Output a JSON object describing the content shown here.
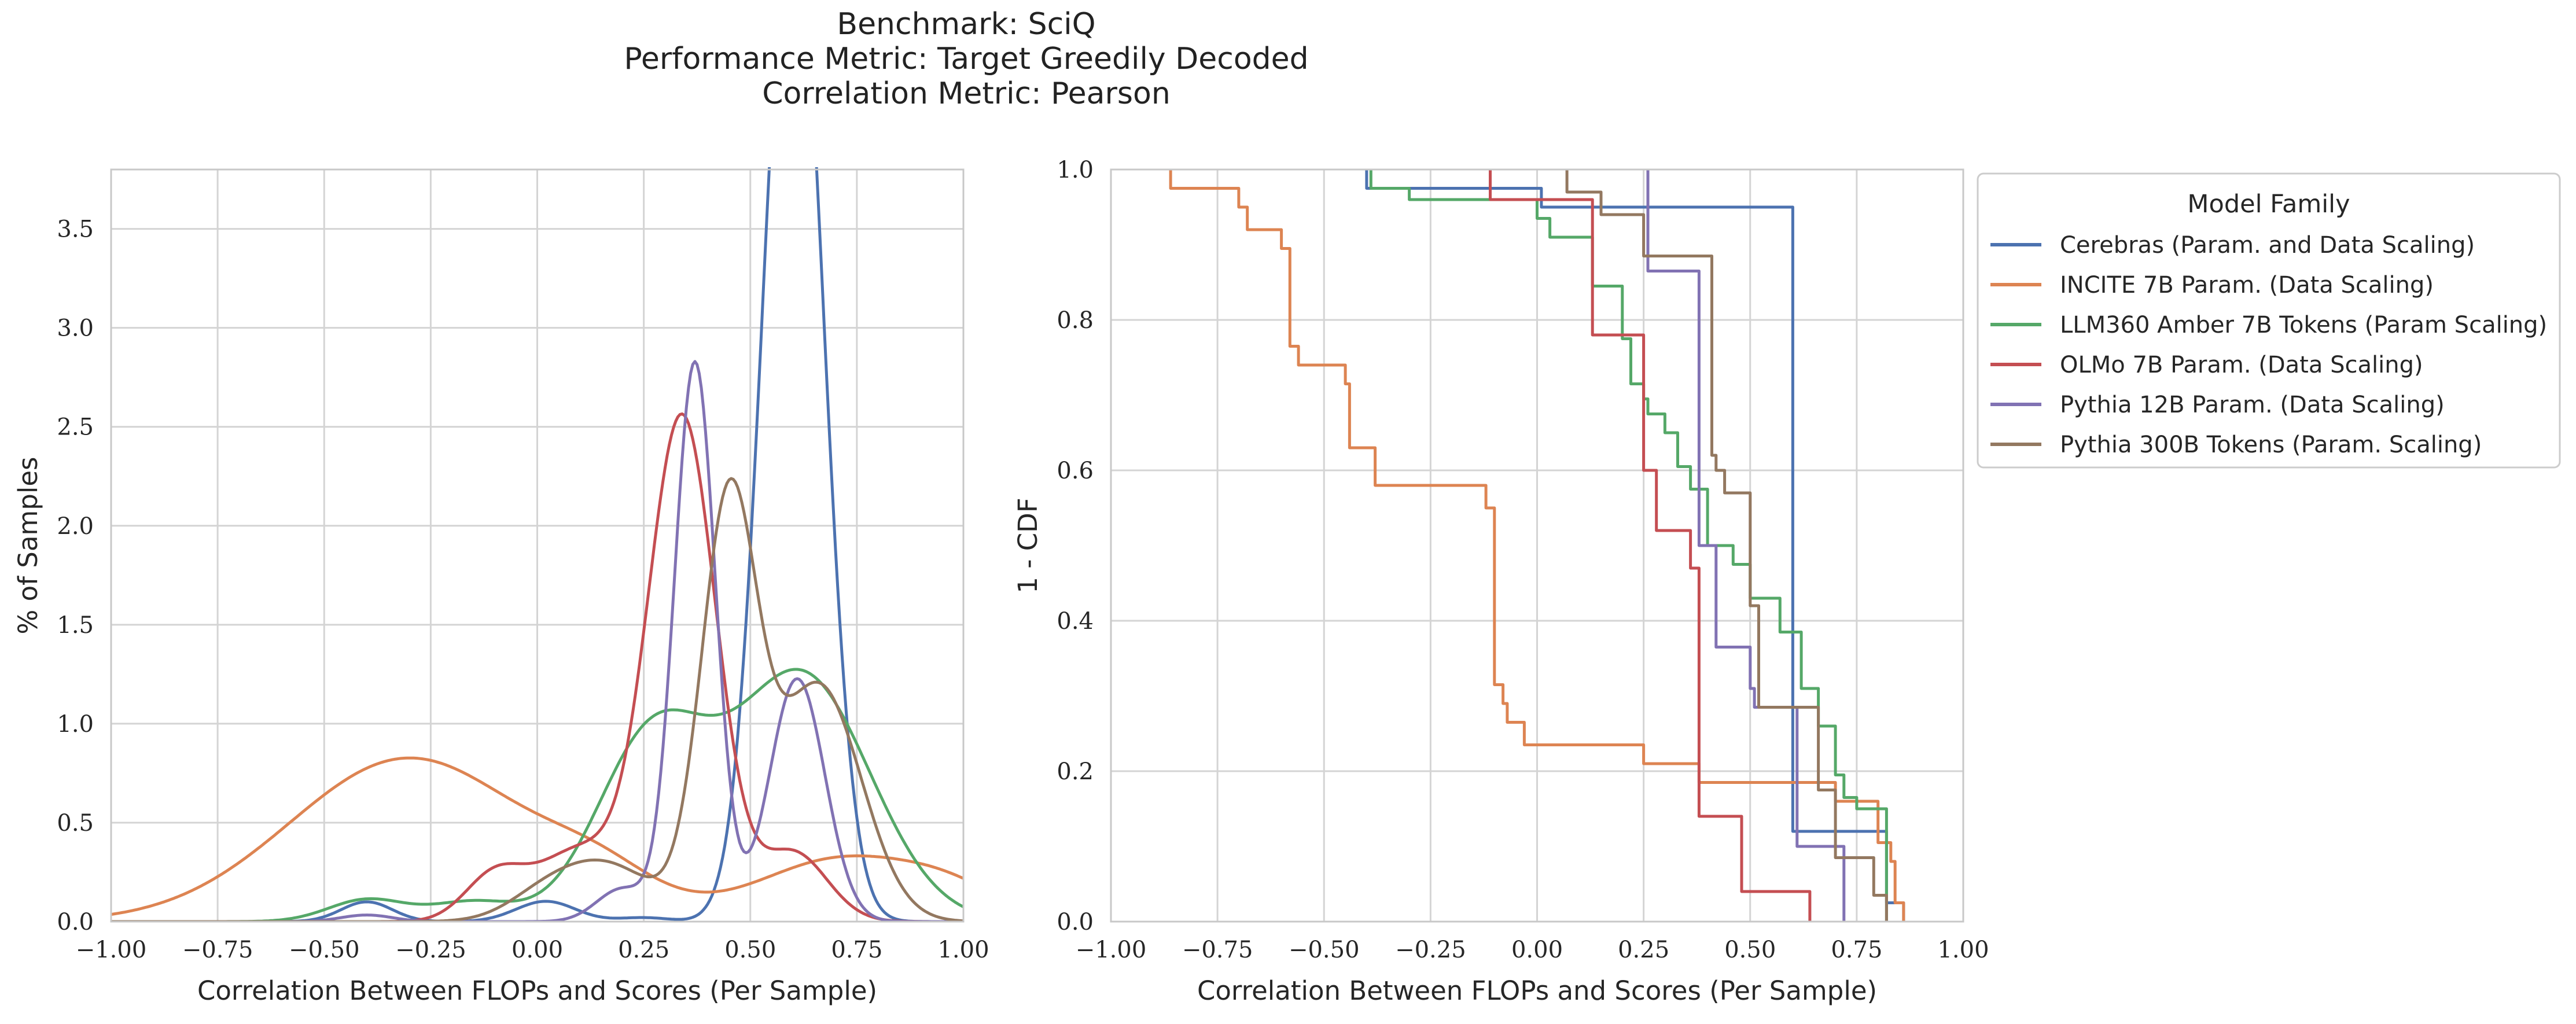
{
  "figure": {
    "title_lines": [
      "Benchmark: SciQ",
      "Performance Metric: Target Greedily Decoded",
      "Correlation Metric: Pearson"
    ]
  },
  "legend": {
    "title": "Model Family",
    "entries": [
      {
        "name": "Cerebras (Param. and Data Scaling)",
        "color": "#4c72b0"
      },
      {
        "name": "INCITE 7B Param. (Data Scaling)",
        "color": "#dd8452"
      },
      {
        "name": "LLM360 Amber 7B Tokens (Param Scaling)",
        "color": "#55a868"
      },
      {
        "name": "OLMo 7B Param. (Data Scaling)",
        "color": "#c44e52"
      },
      {
        "name": "Pythia 12B Param. (Data Scaling)",
        "color": "#8172b3"
      },
      {
        "name": "Pythia 300B Tokens (Param. Scaling)",
        "color": "#937860"
      }
    ]
  },
  "chart_data": [
    {
      "type": "line",
      "subtype": "kde",
      "xlabel": "Correlation Between FLOPs and Scores (Per Sample)",
      "ylabel": "% of Samples",
      "xlim": [
        -1.0,
        1.0
      ],
      "ylim": [
        0,
        3.8
      ],
      "xticks": [
        -1.0,
        -0.75,
        -0.5,
        -0.25,
        0.0,
        0.25,
        0.5,
        0.75,
        1.0
      ],
      "xtick_labels": [
        "−1.00",
        "−0.75",
        "−0.50",
        "−0.25",
        "0.00",
        "0.25",
        "0.50",
        "0.75",
        "1.00"
      ],
      "yticks": [
        0.0,
        0.5,
        1.0,
        1.5,
        2.0,
        2.5,
        3.0,
        3.5
      ],
      "ytick_labels": [
        "0.0",
        "0.5",
        "1.0",
        "1.5",
        "2.0",
        "2.5",
        "3.0",
        "3.5"
      ],
      "grid": true,
      "series": [
        {
          "name": "Cerebras (Param. and Data Scaling)",
          "color": "#4c72b0",
          "components": [
            [
              0.6,
              0.07,
              0.915
            ],
            [
              -0.4,
              0.06,
              0.015
            ],
            [
              0.02,
              0.07,
              0.018
            ],
            [
              0.25,
              0.06,
              0.003
            ]
          ]
        },
        {
          "name": "INCITE 7B Param. (Data Scaling)",
          "color": "#dd8452",
          "components": [
            [
              -0.3,
              0.28,
              0.58
            ],
            [
              0.15,
              0.13,
              0.05
            ],
            [
              0.72,
              0.2,
              0.16
            ],
            [
              0.98,
              0.12,
              0.03
            ]
          ]
        },
        {
          "name": "LLM360 Amber 7B Tokens (Param Scaling)",
          "color": "#55a868",
          "components": [
            [
              -0.4,
              0.09,
              0.025
            ],
            [
              -0.15,
              0.1,
              0.025
            ],
            [
              0.27,
              0.13,
              0.3
            ],
            [
              0.62,
              0.16,
              0.5
            ]
          ]
        },
        {
          "name": "OLMo 7B Param. (Data Scaling)",
          "color": "#c44e52",
          "components": [
            [
              0.34,
              0.08,
              0.51
            ],
            [
              0.1,
              0.1,
              0.09
            ],
            [
              -0.1,
              0.07,
              0.04
            ],
            [
              0.6,
              0.08,
              0.07
            ]
          ]
        },
        {
          "name": "Pythia 12B Param. (Data Scaling)",
          "color": "#8172b3",
          "components": [
            [
              0.37,
              0.048,
              0.34
            ],
            [
              0.61,
              0.065,
              0.2
            ],
            [
              0.2,
              0.06,
              0.025
            ],
            [
              -0.4,
              0.06,
              0.005
            ]
          ]
        },
        {
          "name": "Pythia 300B Tokens (Param. Scaling)",
          "color": "#937860",
          "components": [
            [
              0.45,
              0.065,
              0.34
            ],
            [
              0.66,
              0.1,
              0.3
            ],
            [
              0.15,
              0.12,
              0.09
            ],
            [
              0.0,
              0.08,
              0.012
            ]
          ]
        }
      ]
    },
    {
      "type": "line",
      "subtype": "step",
      "xlabel": "Correlation Between FLOPs and Scores (Per Sample)",
      "ylabel": "1 - CDF",
      "xlim": [
        -1.0,
        1.0
      ],
      "ylim": [
        0.0,
        1.0
      ],
      "xticks": [
        -1.0,
        -0.75,
        -0.5,
        -0.25,
        0.0,
        0.25,
        0.5,
        0.75,
        1.0
      ],
      "xtick_labels": [
        "−1.00",
        "−0.75",
        "−0.50",
        "−0.25",
        "0.00",
        "0.25",
        "0.50",
        "0.75",
        "1.00"
      ],
      "yticks": [
        0.0,
        0.2,
        0.4,
        0.6,
        0.8,
        1.0
      ],
      "ytick_labels": [
        "0.0",
        "0.2",
        "0.4",
        "0.6",
        "0.8",
        "1.0"
      ],
      "grid": true,
      "series": [
        {
          "name": "Cerebras (Param. and Data Scaling)",
          "color": "#4c72b0",
          "x": [
            -0.4,
            -0.4,
            0.01,
            0.01,
            0.6,
            0.6,
            0.82,
            0.82,
            0.86,
            0.86
          ],
          "y": [
            1.0,
            0.975,
            0.975,
            0.95,
            0.95,
            0.12,
            0.12,
            0.025,
            0.025,
            0.0
          ]
        },
        {
          "name": "INCITE 7B Param. (Data Scaling)",
          "color": "#dd8452",
          "x": [
            -0.86,
            -0.86,
            -0.7,
            -0.7,
            -0.68,
            -0.68,
            -0.6,
            -0.6,
            -0.58,
            -0.58,
            -0.56,
            -0.56,
            -0.45,
            -0.45,
            -0.44,
            -0.44,
            -0.38,
            -0.38,
            -0.12,
            -0.12,
            -0.1,
            -0.1,
            -0.08,
            -0.08,
            -0.07,
            -0.07,
            -0.03,
            -0.03,
            0.25,
            0.25,
            0.38,
            0.38,
            0.7,
            0.7,
            0.8,
            0.8,
            0.83,
            0.83,
            0.84,
            0.84,
            0.86,
            0.86
          ],
          "y": [
            1.0,
            0.975,
            0.975,
            0.95,
            0.95,
            0.92,
            0.92,
            0.895,
            0.895,
            0.765,
            0.765,
            0.74,
            0.74,
            0.715,
            0.715,
            0.63,
            0.63,
            0.58,
            0.58,
            0.55,
            0.55,
            0.315,
            0.315,
            0.29,
            0.29,
            0.265,
            0.265,
            0.235,
            0.235,
            0.21,
            0.21,
            0.185,
            0.185,
            0.16,
            0.16,
            0.105,
            0.105,
            0.08,
            0.08,
            0.025,
            0.025,
            0.0
          ]
        },
        {
          "name": "LLM360 Amber 7B Tokens (Param Scaling)",
          "color": "#55a868",
          "x": [
            -0.39,
            -0.39,
            -0.3,
            -0.3,
            0.0,
            0.0,
            0.03,
            0.03,
            0.13,
            0.13,
            0.2,
            0.2,
            0.22,
            0.22,
            0.25,
            0.25,
            0.26,
            0.26,
            0.3,
            0.3,
            0.33,
            0.33,
            0.36,
            0.36,
            0.4,
            0.4,
            0.46,
            0.46,
            0.5,
            0.5,
            0.57,
            0.57,
            0.62,
            0.62,
            0.66,
            0.66,
            0.7,
            0.7,
            0.72,
            0.72,
            0.75,
            0.75,
            0.82,
            0.82
          ],
          "y": [
            1.0,
            0.975,
            0.975,
            0.96,
            0.96,
            0.935,
            0.935,
            0.91,
            0.91,
            0.845,
            0.845,
            0.775,
            0.775,
            0.715,
            0.715,
            0.695,
            0.695,
            0.675,
            0.675,
            0.65,
            0.65,
            0.605,
            0.605,
            0.575,
            0.575,
            0.5,
            0.5,
            0.475,
            0.475,
            0.43,
            0.43,
            0.385,
            0.385,
            0.31,
            0.31,
            0.26,
            0.26,
            0.195,
            0.195,
            0.165,
            0.165,
            0.15,
            0.15,
            0.0
          ]
        },
        {
          "name": "OLMo 7B Param. (Data Scaling)",
          "color": "#c44e52",
          "x": [
            -0.11,
            -0.11,
            0.13,
            0.13,
            0.25,
            0.25,
            0.28,
            0.28,
            0.36,
            0.36,
            0.38,
            0.38,
            0.48,
            0.48,
            0.64,
            0.64
          ],
          "y": [
            1.0,
            0.96,
            0.96,
            0.78,
            0.78,
            0.6,
            0.6,
            0.52,
            0.52,
            0.47,
            0.47,
            0.14,
            0.14,
            0.04,
            0.04,
            0.0
          ]
        },
        {
          "name": "Pythia 12B Param. (Data Scaling)",
          "color": "#8172b3",
          "x": [
            0.26,
            0.26,
            0.38,
            0.38,
            0.42,
            0.42,
            0.5,
            0.5,
            0.51,
            0.51,
            0.61,
            0.61,
            0.72,
            0.72
          ],
          "y": [
            1.0,
            0.865,
            0.865,
            0.5,
            0.5,
            0.365,
            0.365,
            0.31,
            0.31,
            0.285,
            0.285,
            0.1,
            0.1,
            0.0
          ]
        },
        {
          "name": "Pythia 300B Tokens (Param. Scaling)",
          "color": "#937860",
          "x": [
            0.07,
            0.07,
            0.15,
            0.15,
            0.25,
            0.25,
            0.41,
            0.41,
            0.42,
            0.42,
            0.44,
            0.44,
            0.5,
            0.5,
            0.52,
            0.52,
            0.6,
            0.6,
            0.66,
            0.66,
            0.7,
            0.7,
            0.79,
            0.79,
            0.82,
            0.82
          ],
          "y": [
            1.0,
            0.97,
            0.97,
            0.94,
            0.94,
            0.885,
            0.885,
            0.62,
            0.62,
            0.6,
            0.6,
            0.57,
            0.57,
            0.42,
            0.42,
            0.285,
            0.285,
            0.285,
            0.285,
            0.175,
            0.175,
            0.085,
            0.085,
            0.035,
            0.035,
            0.0
          ]
        }
      ]
    }
  ]
}
